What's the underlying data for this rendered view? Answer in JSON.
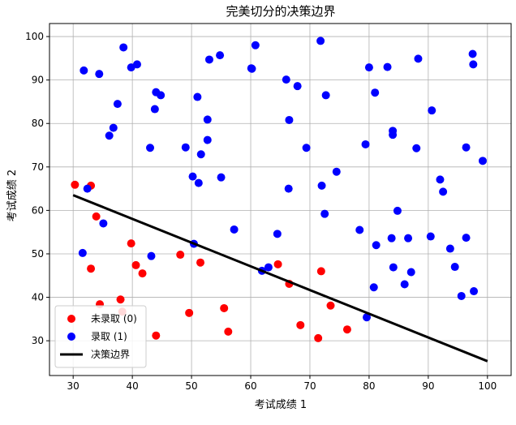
{
  "chart_data": {
    "type": "scatter",
    "title": "完美切分的决策边界",
    "xlabel": "考试成绩 1",
    "ylabel": "考试成绩 2",
    "xlim": [
      26,
      104
    ],
    "ylim": [
      22,
      103
    ],
    "xticks": [
      "30",
      "40",
      "50",
      "60",
      "70",
      "80",
      "90",
      "100"
    ],
    "yticks": [
      "30",
      "40",
      "50",
      "60",
      "70",
      "80",
      "90",
      "100"
    ],
    "xtick_values": [
      30,
      40,
      50,
      60,
      70,
      80,
      90,
      100
    ],
    "ytick_values": [
      30,
      40,
      50,
      60,
      70,
      80,
      90,
      100
    ],
    "grid": true,
    "legend_position": "lower-left",
    "series": [
      {
        "name": "未录取 (0)",
        "color": "#ff0000",
        "marker": "circle",
        "points": [
          [
            30.3,
            65.9
          ],
          [
            33.0,
            65.7
          ],
          [
            33.9,
            58.6
          ],
          [
            38.0,
            39.5
          ],
          [
            38.3,
            36.7
          ],
          [
            39.8,
            52.4
          ],
          [
            40.6,
            47.4
          ],
          [
            41.7,
            45.5
          ],
          [
            44.0,
            31.2
          ],
          [
            48.1,
            49.8
          ],
          [
            49.6,
            36.4
          ],
          [
            51.5,
            48.0
          ],
          [
            55.5,
            37.5
          ],
          [
            56.2,
            32.1
          ],
          [
            64.6,
            47.6
          ],
          [
            66.5,
            43.1
          ],
          [
            68.4,
            33.6
          ],
          [
            71.4,
            30.6
          ],
          [
            71.9,
            46.0
          ],
          [
            73.5,
            38.1
          ],
          [
            76.3,
            32.6
          ],
          [
            33.0,
            46.6
          ],
          [
            34.5,
            38.4
          ]
        ]
      },
      {
        "name": "录取 (1)",
        "color": "#0000ff",
        "marker": "circle",
        "points": [
          [
            31.6,
            50.2
          ],
          [
            31.8,
            92.2
          ],
          [
            32.4,
            65.0
          ],
          [
            34.4,
            91.4
          ],
          [
            35.1,
            57.0
          ],
          [
            36.1,
            77.2
          ],
          [
            36.8,
            79.0
          ],
          [
            37.5,
            84.5
          ],
          [
            38.5,
            97.5
          ],
          [
            39.8,
            92.9
          ],
          [
            40.8,
            93.6
          ],
          [
            43.0,
            74.4
          ],
          [
            43.2,
            49.5
          ],
          [
            43.8,
            83.3
          ],
          [
            44.0,
            87.2
          ],
          [
            44.8,
            86.5
          ],
          [
            49.0,
            74.5
          ],
          [
            50.2,
            67.8
          ],
          [
            50.4,
            52.3
          ],
          [
            51.0,
            86.1
          ],
          [
            51.2,
            66.3
          ],
          [
            51.6,
            72.9
          ],
          [
            52.7,
            80.9
          ],
          [
            52.7,
            76.2
          ],
          [
            53.0,
            94.7
          ],
          [
            54.8,
            95.7
          ],
          [
            55.0,
            67.6
          ],
          [
            57.2,
            55.6
          ],
          [
            60.1,
            92.7
          ],
          [
            60.2,
            92.6
          ],
          [
            60.8,
            98.0
          ],
          [
            61.9,
            46.1
          ],
          [
            63.0,
            46.9
          ],
          [
            64.5,
            54.6
          ],
          [
            66.0,
            90.1
          ],
          [
            66.4,
            65.0
          ],
          [
            66.5,
            80.8
          ],
          [
            67.9,
            88.6
          ],
          [
            69.4,
            74.4
          ],
          [
            71.8,
            99.0
          ],
          [
            72.0,
            65.7
          ],
          [
            72.5,
            59.2
          ],
          [
            72.7,
            86.5
          ],
          [
            74.5,
            68.9
          ],
          [
            78.4,
            55.5
          ],
          [
            79.4,
            75.2
          ],
          [
            79.6,
            35.4
          ],
          [
            80.0,
            92.9
          ],
          [
            80.8,
            42.3
          ],
          [
            81.0,
            87.1
          ],
          [
            81.2,
            52.0
          ],
          [
            83.1,
            93.0
          ],
          [
            83.8,
            53.6
          ],
          [
            84.0,
            78.3
          ],
          [
            84.0,
            77.4
          ],
          [
            84.1,
            46.9
          ],
          [
            84.8,
            59.9
          ],
          [
            86.0,
            43.0
          ],
          [
            86.6,
            53.6
          ],
          [
            87.1,
            45.8
          ],
          [
            88.0,
            74.3
          ],
          [
            88.3,
            94.9
          ],
          [
            90.4,
            54.0
          ],
          [
            90.6,
            83.0
          ],
          [
            92.0,
            67.1
          ],
          [
            92.5,
            64.3
          ],
          [
            93.7,
            51.2
          ],
          [
            94.5,
            47.0
          ],
          [
            95.6,
            40.3
          ],
          [
            96.4,
            74.5
          ],
          [
            96.4,
            53.7
          ],
          [
            97.5,
            96.0
          ],
          [
            97.6,
            93.6
          ],
          [
            97.7,
            41.4
          ],
          [
            99.2,
            71.4
          ]
        ]
      }
    ],
    "lines": [
      {
        "name": "决策边界",
        "color": "#000000",
        "x": [
          30,
          100
        ],
        "y": [
          63.5,
          25.3
        ]
      }
    ]
  }
}
